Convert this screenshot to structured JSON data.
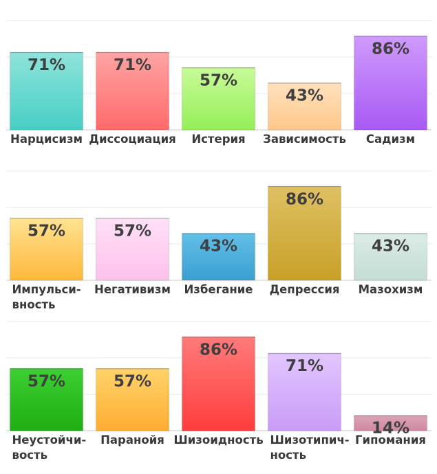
{
  "chart_data": [
    {
      "type": "bar",
      "ylim": [
        0,
        100
      ],
      "grid": true,
      "categories": [
        "Нарцисизм",
        "Диссоциация",
        "Истерия",
        "Зависимость",
        "Садизм"
      ],
      "values": [
        71,
        71,
        57,
        43,
        86
      ],
      "value_labels": [
        "71%",
        "71%",
        "57%",
        "43%",
        "86%"
      ],
      "colors": [
        [
          "#8fe3da",
          "#47cfc5"
        ],
        [
          "#ffa4a4",
          "#ff6a6a"
        ],
        [
          "#c8fb99",
          "#95ef58"
        ],
        [
          "#ffe2bd",
          "#ffc78b"
        ],
        [
          "#cf9afc",
          "#a95af5"
        ]
      ]
    },
    {
      "type": "bar",
      "ylim": [
        0,
        100
      ],
      "grid": true,
      "categories": [
        "Импульси-\nвность",
        "Негативизм",
        "Избегание",
        "Депрессия",
        "Мазохизм"
      ],
      "values": [
        57,
        57,
        43,
        86,
        43
      ],
      "value_labels": [
        "57%",
        "57%",
        "43%",
        "86%",
        "43%"
      ],
      "colors": [
        [
          "#ffe392",
          "#ffb83b"
        ],
        [
          "#ffe0f7",
          "#fdc1ec"
        ],
        [
          "#62c0e8",
          "#3b9fd0"
        ],
        [
          "#dfc064",
          "#c8a127"
        ],
        [
          "#dbece7",
          "#c4ddd4"
        ]
      ]
    },
    {
      "type": "bar",
      "ylim": [
        0,
        100
      ],
      "grid": true,
      "categories": [
        "Неустойчи-\nвость",
        "Паранойя",
        "Шизоидность",
        "Шизотипич-\nность",
        "Гипомания"
      ],
      "values": [
        57,
        57,
        86,
        71,
        14
      ],
      "value_labels": [
        "57%",
        "57%",
        "86%",
        "71%",
        "14%"
      ],
      "colors": [
        [
          "#3ccf32",
          "#1fae14"
        ],
        [
          "#ffd36a",
          "#ffad33"
        ],
        [
          "#ff7b7b",
          "#ff3d3d"
        ],
        [
          "#e3c6ff",
          "#c99cf6"
        ],
        [
          "#dca4b5",
          "#cf8aa0"
        ]
      ]
    }
  ]
}
